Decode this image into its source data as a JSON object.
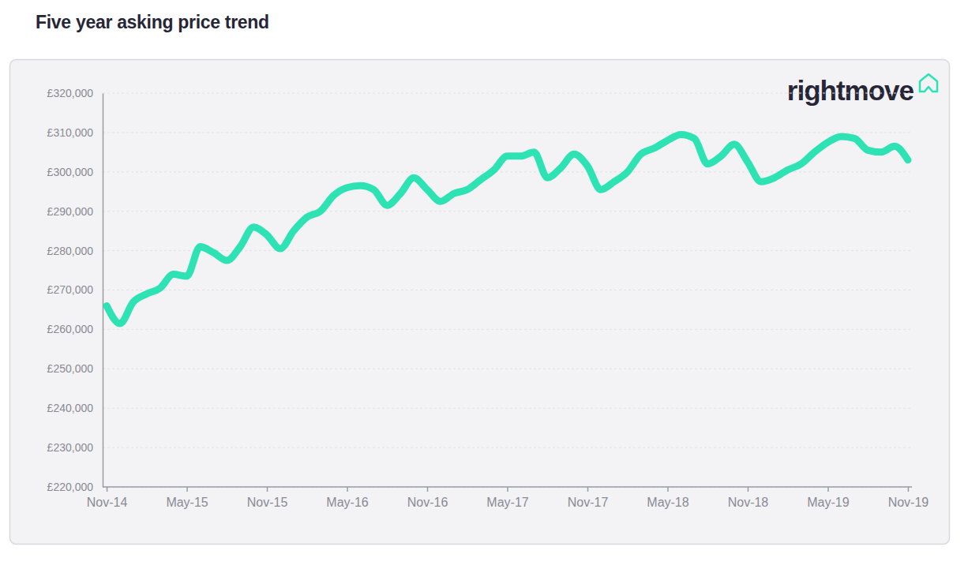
{
  "chart_data": {
    "type": "line",
    "title": "Five year asking price trend",
    "logo": "rightmove",
    "categories": [
      "Nov-14",
      null,
      null,
      null,
      null,
      null,
      "May-15",
      null,
      null,
      null,
      null,
      null,
      "Nov-15",
      null,
      null,
      null,
      null,
      null,
      "May-16",
      null,
      null,
      null,
      null,
      null,
      "Nov-16",
      null,
      null,
      null,
      null,
      null,
      "May-17",
      null,
      null,
      null,
      null,
      null,
      "Nov-17",
      null,
      null,
      null,
      null,
      null,
      "May-18",
      null,
      null,
      null,
      null,
      null,
      "Nov-18",
      null,
      null,
      null,
      null,
      null,
      "May-19",
      null,
      null,
      null,
      null,
      null,
      "Nov-19"
    ],
    "values": [
      266000,
      261500,
      267000,
      269000,
      270500,
      274000,
      273500,
      281000,
      279500,
      277500,
      281000,
      286000,
      284000,
      280500,
      285000,
      288500,
      290000,
      294000,
      296000,
      296500,
      295500,
      291500,
      294500,
      298500,
      295500,
      292500,
      294500,
      295500,
      298000,
      300500,
      304000,
      304000,
      305000,
      298500,
      301000,
      304500,
      301500,
      295500,
      297500,
      300000,
      304500,
      306000,
      308000,
      309500,
      308500,
      302000,
      304000,
      307000,
      302500,
      297500,
      298500,
      300500,
      302000,
      305000,
      307500,
      309000,
      308500,
      305500,
      305000,
      306500,
      303000
    ],
    "color": "#2ee3b3",
    "ylim": [
      220000,
      320000
    ],
    "yticks": [
      {
        "value": 220000,
        "label": "£220,000"
      },
      {
        "value": 230000,
        "label": "£230,000"
      },
      {
        "value": 240000,
        "label": "£240,000"
      },
      {
        "value": 250000,
        "label": "£250,000"
      },
      {
        "value": 260000,
        "label": "£260,000"
      },
      {
        "value": 270000,
        "label": "£270,000"
      },
      {
        "value": 280000,
        "label": "£280,000"
      },
      {
        "value": 290000,
        "label": "£290,000"
      },
      {
        "value": 300000,
        "label": "£300,000"
      },
      {
        "value": 310000,
        "label": "£310,000"
      },
      {
        "value": 320000,
        "label": "£320,000"
      }
    ],
    "grid": true
  }
}
